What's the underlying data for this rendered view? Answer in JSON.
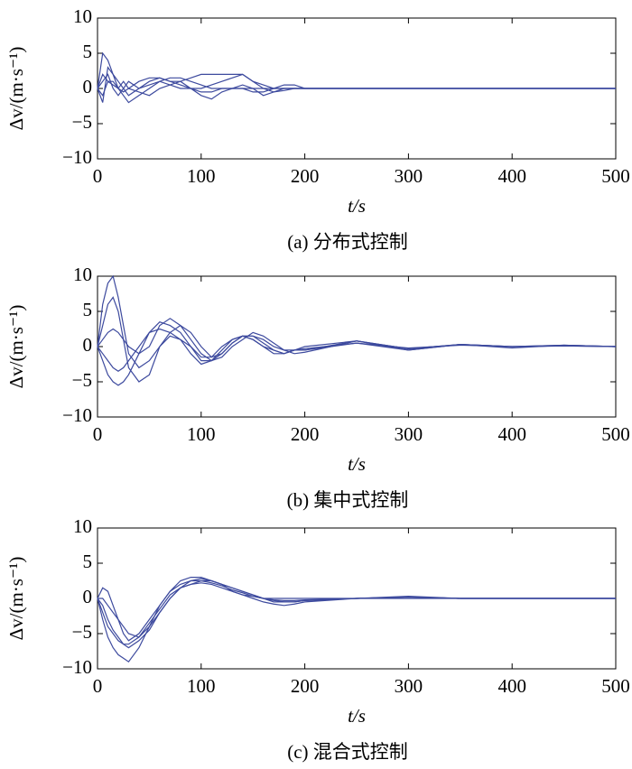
{
  "chart_data": [
    {
      "type": "line",
      "title": "(a) 分布式控制",
      "xlabel": "t/s",
      "ylabel": "Δv/(m·s⁻¹)",
      "x": [
        0,
        5,
        10,
        15,
        20,
        25,
        30,
        40,
        50,
        60,
        70,
        80,
        90,
        100,
        110,
        120,
        130,
        140,
        150,
        160,
        170,
        180,
        190,
        200,
        250,
        300,
        350,
        400,
        450,
        500
      ],
      "xlim": [
        0,
        500
      ],
      "ylim": [
        -10,
        10
      ],
      "xticks": [
        0,
        100,
        200,
        300,
        400,
        500
      ],
      "yticks": [
        {
          "value": -10,
          "label": "−10"
        },
        {
          "value": -5,
          "label": "−5"
        },
        0,
        5,
        10
      ],
      "series": [
        {
          "color": "#3d4a9e",
          "values": [
            0,
            5,
            4,
            2,
            1,
            0,
            -1,
            0,
            1,
            1.5,
            1,
            0.5,
            0,
            -0.5,
            -0.5,
            0,
            0,
            0,
            0,
            0,
            0,
            0,
            0,
            0,
            0,
            0,
            0,
            0,
            0,
            0
          ]
        },
        {
          "color": "#3d4a9e",
          "values": [
            0,
            -2,
            3,
            2,
            0,
            -1,
            -2,
            -1,
            0,
            1,
            1.5,
            1.5,
            1,
            0.5,
            0,
            0,
            0,
            0,
            -0.5,
            -0.5,
            0,
            0,
            0,
            0,
            0,
            0,
            0,
            0,
            0,
            0
          ]
        },
        {
          "color": "#3d4a9e",
          "values": [
            0,
            2,
            1,
            1,
            0,
            1,
            0,
            1,
            1.5,
            1.5,
            1,
            1,
            1.5,
            2,
            2,
            2,
            2,
            2,
            1,
            0,
            -0.5,
            -0.3,
            0,
            0,
            0,
            0,
            0,
            0,
            0,
            0
          ]
        },
        {
          "color": "#3d4a9e",
          "values": [
            0,
            1,
            2,
            0,
            -1,
            0,
            1,
            0,
            0.5,
            1,
            0.5,
            0,
            0,
            0,
            0.5,
            1,
            1.5,
            2,
            1,
            0.5,
            0,
            0.5,
            0.5,
            0,
            0,
            0,
            0,
            0,
            0,
            0
          ]
        },
        {
          "color": "#3d4a9e",
          "values": [
            0,
            -1,
            1,
            0.5,
            0,
            -0.5,
            0,
            -0.5,
            -1,
            0,
            0.5,
            1,
            0,
            -1,
            -1.5,
            -0.5,
            0,
            0.5,
            0,
            -1,
            -0.5,
            0,
            0,
            0,
            0,
            0,
            0,
            0,
            0,
            0
          ]
        }
      ]
    },
    {
      "type": "line",
      "title": "(b) 集中式控制",
      "xlabel": "t/s",
      "ylabel": "Δv/(m·s⁻¹)",
      "x": [
        0,
        5,
        10,
        15,
        20,
        25,
        30,
        40,
        50,
        60,
        70,
        80,
        90,
        100,
        110,
        120,
        130,
        140,
        150,
        160,
        170,
        180,
        190,
        200,
        250,
        300,
        350,
        400,
        450,
        500
      ],
      "xlim": [
        0,
        500
      ],
      "ylim": [
        -10,
        10
      ],
      "xticks": [
        0,
        100,
        200,
        300,
        400,
        500
      ],
      "yticks": [
        {
          "value": -10,
          "label": "−10"
        },
        {
          "value": -5,
          "label": "−5"
        },
        0,
        5,
        10
      ],
      "series": [
        {
          "color": "#3d4a9e",
          "values": [
            0,
            6,
            9,
            10,
            7,
            3,
            -1,
            -3,
            -2,
            0,
            1.5,
            1,
            0,
            -1.5,
            -1.5,
            0,
            1,
            1.5,
            1,
            0,
            -0.5,
            -1,
            -0.5,
            0,
            0.8,
            -0.3,
            0.3,
            -0.2,
            0.2,
            0
          ]
        },
        {
          "color": "#3d4a9e",
          "values": [
            0,
            3,
            6,
            7,
            5,
            1,
            -3,
            -5,
            -4,
            0,
            2,
            3,
            2,
            0,
            -1.5,
            -1,
            0.5,
            1.5,
            1.5,
            0.5,
            -0.5,
            -1,
            -0.5,
            -0.5,
            0.5,
            -0.5,
            0.3,
            0,
            0.2,
            0
          ]
        },
        {
          "color": "#3d4a9e",
          "values": [
            0,
            -2,
            -4,
            -5,
            -5.5,
            -5,
            -4,
            -1,
            2,
            3.5,
            3,
            2,
            0,
            -2,
            -2,
            -1,
            0.5,
            1.5,
            1.5,
            1,
            0,
            -0.5,
            -1,
            -0.8,
            0.8,
            -0.5,
            0.3,
            0,
            0.1,
            0
          ]
        },
        {
          "color": "#3d4a9e",
          "values": [
            0,
            1,
            2,
            2.5,
            2,
            1,
            0,
            -1,
            0,
            3,
            4,
            3,
            1,
            -1,
            -2,
            -1.5,
            0,
            1,
            2,
            1.5,
            0.5,
            -0.5,
            -0.5,
            -0.3,
            0.5,
            -0.2,
            0.2,
            0,
            0.2,
            0
          ]
        },
        {
          "color": "#3d4a9e",
          "values": [
            0,
            -1,
            -2,
            -3,
            -3.5,
            -3,
            -2,
            0,
            2,
            2.5,
            2,
            1,
            -1,
            -2.5,
            -2,
            -0.5,
            1,
            1.5,
            1,
            0,
            -1,
            -1,
            -0.5,
            -0.5,
            0.8,
            -0.3,
            0.3,
            0,
            0.1,
            0
          ]
        }
      ]
    },
    {
      "type": "line",
      "title": "(c) 混合式控制",
      "xlabel": "t/s",
      "ylabel": "Δv/(m·s⁻¹)",
      "x": [
        0,
        5,
        10,
        15,
        20,
        25,
        30,
        40,
        50,
        60,
        70,
        80,
        90,
        100,
        110,
        120,
        130,
        140,
        150,
        160,
        170,
        180,
        190,
        200,
        250,
        300,
        350,
        400,
        450,
        500
      ],
      "xlim": [
        0,
        500
      ],
      "ylim": [
        -10,
        10
      ],
      "xticks": [
        0,
        100,
        200,
        300,
        400,
        500
      ],
      "yticks": [
        {
          "value": -10,
          "label": "−10"
        },
        {
          "value": -5,
          "label": "−5"
        },
        0,
        5,
        10
      ],
      "series": [
        {
          "color": "#3d4a9e",
          "values": [
            0,
            1.5,
            1,
            -1,
            -3,
            -5,
            -6,
            -5,
            -3,
            -1,
            1,
            2.5,
            3,
            3,
            2.5,
            2,
            1.5,
            1,
            0.5,
            0,
            -0.5,
            -0.5,
            -0.5,
            -0.3,
            0,
            0.2,
            0,
            0,
            0,
            0
          ]
        },
        {
          "color": "#3d4a9e",
          "values": [
            0,
            -3,
            -5.5,
            -7,
            -8,
            -8.5,
            -9,
            -7,
            -4,
            -1,
            1,
            2,
            2.5,
            2.5,
            2.5,
            2,
            1,
            0.5,
            0,
            -0.5,
            -0.8,
            -1,
            -0.8,
            -0.5,
            0,
            0.2,
            0,
            0,
            0,
            0
          ]
        },
        {
          "color": "#3d4a9e",
          "values": [
            0,
            0,
            -1,
            -2,
            -3,
            -4,
            -5,
            -5.5,
            -4,
            -2,
            0,
            1.5,
            2,
            2.2,
            2,
            1.5,
            1,
            0.5,
            0.3,
            0,
            0,
            0,
            0,
            0,
            0,
            0,
            0,
            0,
            0,
            0
          ]
        },
        {
          "color": "#3d4a9e",
          "values": [
            0,
            -1,
            -3,
            -4.5,
            -5.5,
            -6.5,
            -7,
            -6,
            -4.5,
            -2,
            0,
            1.5,
            2.5,
            2.8,
            2.5,
            2,
            1.5,
            1,
            0.5,
            0,
            -0.3,
            -0.5,
            -0.5,
            -0.3,
            0,
            0.3,
            0,
            0,
            0,
            0
          ]
        },
        {
          "color": "#3d4a9e",
          "values": [
            0,
            -2,
            -4,
            -5,
            -6,
            -6.5,
            -6.5,
            -5.5,
            -3.5,
            -1.5,
            0.5,
            1.5,
            2,
            2.5,
            2.2,
            1.8,
            1.2,
            0.8,
            0.3,
            0,
            -0.2,
            -0.3,
            -0.3,
            -0.2,
            0,
            0.2,
            0,
            0,
            0,
            0
          ]
        }
      ]
    }
  ]
}
